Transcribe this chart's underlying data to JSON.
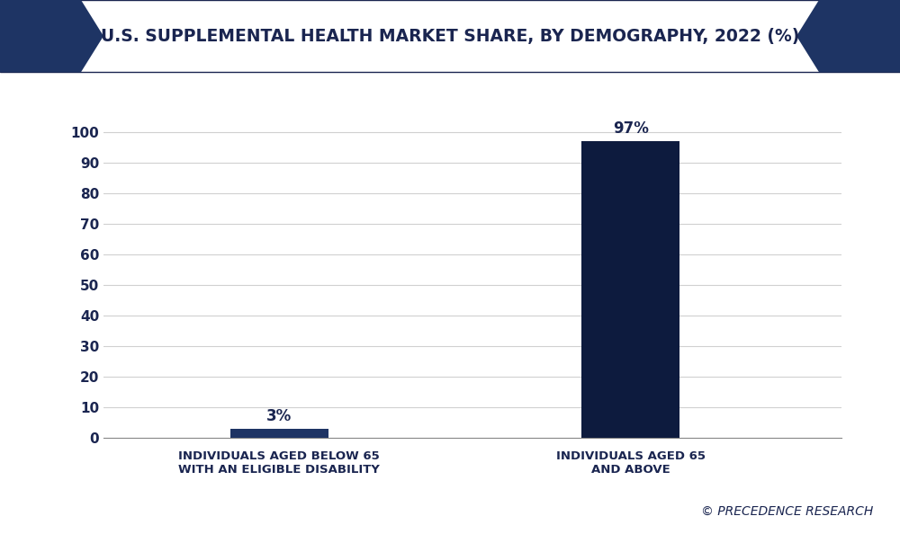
{
  "title": "U.S. SUPPLEMENTAL HEALTH MARKET SHARE, BY DEMOGRAPHY, 2022 (%)",
  "categories": [
    "INDIVIDUALS AGED BELOW 65\nWITH AN ELIGIBLE DISABILITY",
    "INDIVIDUALS AGED 65\nAND ABOVE"
  ],
  "values": [
    3,
    97
  ],
  "bar_colors": [
    "#1e3464",
    "#0d1b3e"
  ],
  "bar_labels": [
    "3%",
    "97%"
  ],
  "ylim": [
    0,
    110
  ],
  "yticks": [
    0,
    10,
    20,
    30,
    40,
    50,
    60,
    70,
    80,
    90,
    100
  ],
  "background_color": "#ffffff",
  "plot_bg_color": "#ffffff",
  "title_color": "#1a2550",
  "tick_label_color": "#1a2550",
  "grid_color": "#d0d0d0",
  "watermark": "© PRECEDENCE RESEARCH",
  "title_fontsize": 13.5,
  "label_fontsize": 9.5,
  "bar_label_fontsize": 12,
  "watermark_fontsize": 10,
  "banner_color": "#ffffff",
  "banner_border_color": "#1a2550",
  "pentagon_color": "#1e3464",
  "outer_bg_color": "#ffffff"
}
